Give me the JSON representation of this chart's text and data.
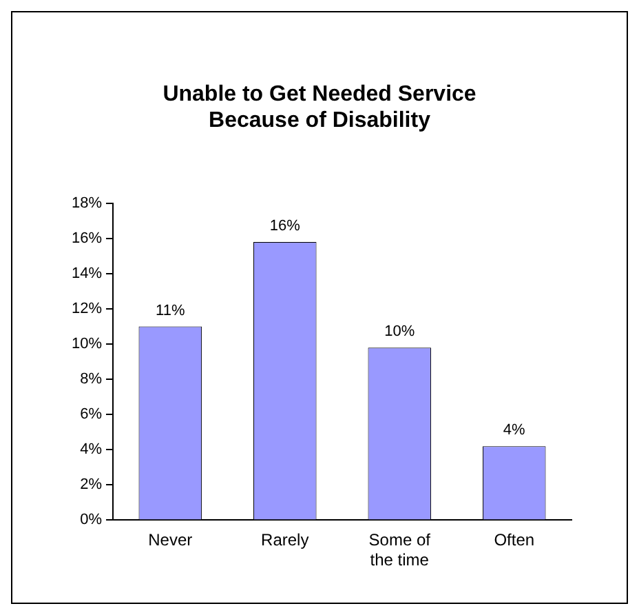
{
  "chart_data": {
    "type": "bar",
    "title": "Unable to Get Needed Service Because of Disability",
    "categories": [
      "Never",
      "Rarely",
      "Some of the time",
      "Often"
    ],
    "values": [
      11,
      15.8,
      9.8,
      4.2
    ],
    "value_labels": [
      "11%",
      "16%",
      "10%",
      "4%"
    ],
    "color": "#9999ff",
    "ylim": [
      0,
      18
    ],
    "yticks": [
      {
        "value": 0,
        "label": "0%"
      },
      {
        "value": 2,
        "label": "2%"
      },
      {
        "value": 4,
        "label": "4%"
      },
      {
        "value": 6,
        "label": "6%"
      },
      {
        "value": 8,
        "label": "8%"
      },
      {
        "value": 10,
        "label": "10%"
      },
      {
        "value": 12,
        "label": "12%"
      },
      {
        "value": 14,
        "label": "14%"
      },
      {
        "value": 16,
        "label": "16%"
      },
      {
        "value": 18,
        "label": "18%"
      }
    ],
    "grid": false,
    "legend": false
  }
}
